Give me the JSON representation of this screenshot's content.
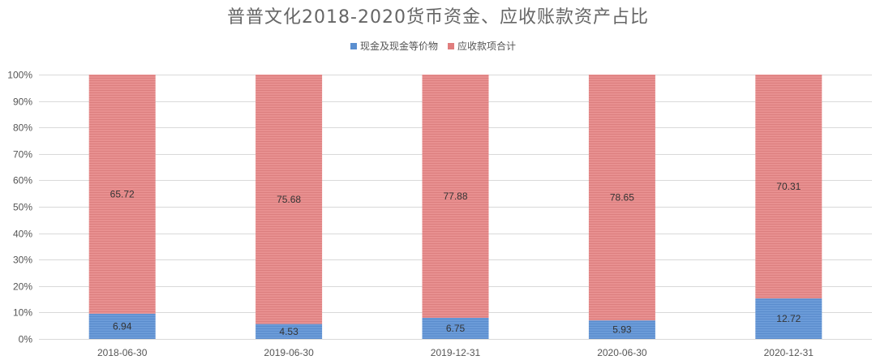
{
  "chart_data": {
    "type": "bar",
    "stacked": true,
    "percent_scale": true,
    "title": "普普文化2018-2020货币资金、应收账款资产占比",
    "xlabel": "",
    "ylabel": "",
    "categories": [
      "2018-06-30",
      "2019-06-30",
      "2019-12-31",
      "2020-06-30",
      "2020-12-31"
    ],
    "series": [
      {
        "name": "现金及现金等价物",
        "values": [
          6.94,
          4.53,
          6.75,
          5.93,
          12.72
        ],
        "color": "#5b8fd0"
      },
      {
        "name": "应收款项合计",
        "values": [
          65.72,
          75.68,
          77.88,
          78.65,
          70.31
        ],
        "color": "#e07d7d"
      }
    ],
    "y_ticks": [
      "0%",
      "10%",
      "20%",
      "30%",
      "40%",
      "50%",
      "60%",
      "70%",
      "80%",
      "90%",
      "100%"
    ],
    "ylim": [
      0,
      100
    ],
    "grid": true,
    "legend_position": "top-center"
  }
}
